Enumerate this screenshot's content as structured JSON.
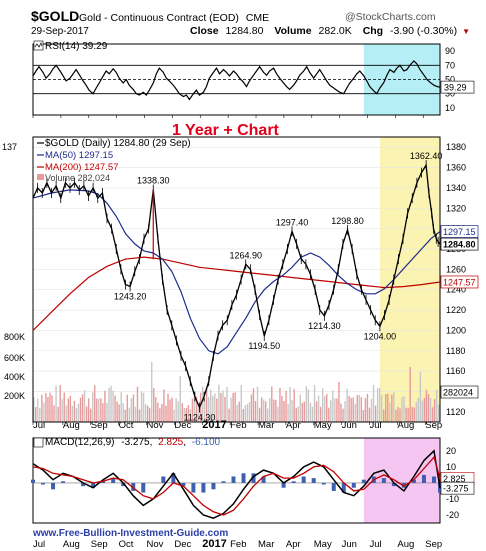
{
  "header": {
    "symbol": "$GOLD",
    "description": "Gold - Continuous Contract (EOD)",
    "exchange": "CME",
    "brand": "@StockCharts.com",
    "date": "29-Sep-2017",
    "close_label": "Close",
    "close_value": "1284.80",
    "volume_label": "Volume",
    "volume_value": "282.0K",
    "chg_label": "Chg",
    "chg_value": "-3.90 (-0.30%)",
    "chg_arrow": "▼"
  },
  "colors": {
    "price": "#000000",
    "ma50": "#1f2c8c",
    "ma200": "#c00000",
    "volume_down": "#e89a9a",
    "volume_up": "#c8c8c8",
    "highlight_yellow": "#fbf3b2",
    "highlight_cyan": "#b5eef5",
    "highlight_magenta": "#f6c6f3",
    "title_red": "#e0001b",
    "macd_hist": "#3f5fb0",
    "macd_signal": "#c00000",
    "link": "#2d3fa6"
  },
  "chart_data": [
    {
      "type": "line",
      "panel": "RSI",
      "label": "RSI(14) 39.29",
      "legend_icon": "rsi-legend-icon",
      "ylim": [
        0,
        100
      ],
      "ticks": [
        "90",
        "70",
        "50",
        "30",
        "10"
      ],
      "current_value": "39.29",
      "reference_lines": [
        70,
        50,
        30
      ],
      "x": [
        0,
        3,
        6,
        10,
        13,
        17,
        20,
        23,
        27,
        30,
        33,
        37,
        40,
        43,
        47,
        50,
        53,
        56,
        60,
        63,
        66,
        70,
        73,
        76,
        80,
        83,
        86,
        90,
        93,
        96,
        100,
        103,
        106,
        110,
        113,
        116,
        120,
        123,
        126,
        130,
        133,
        136,
        140,
        143,
        146,
        150,
        153,
        156,
        160,
        163,
        166,
        170,
        173,
        176,
        180,
        183,
        186,
        190,
        193,
        196,
        200,
        203,
        206,
        210,
        213,
        216,
        220,
        223,
        226,
        230,
        233,
        236,
        240,
        243,
        246,
        250,
        253,
        256,
        260,
        263,
        266,
        270,
        273,
        276,
        280,
        283,
        286,
        290,
        293,
        296,
        300,
        303,
        306,
        310,
        313,
        316,
        320,
        323,
        326,
        330,
        333,
        336,
        340,
        343,
        346,
        350,
        353,
        356,
        360,
        363,
        366,
        370,
        373,
        376,
        380,
        383,
        386,
        390,
        393,
        396,
        400,
        403,
        406
      ],
      "values": [
        55,
        62,
        68,
        60,
        52,
        58,
        65,
        70,
        62,
        55,
        48,
        52,
        58,
        64,
        55,
        48,
        42,
        35,
        30,
        38,
        45,
        55,
        62,
        58,
        65,
        60,
        52,
        45,
        50,
        42,
        36,
        30,
        28,
        32,
        28,
        35,
        45,
        58,
        66,
        60,
        52,
        48,
        42,
        36,
        30,
        26,
        28,
        22,
        30,
        35,
        28,
        32,
        40,
        52,
        60,
        66,
        58,
        64,
        60,
        55,
        62,
        58,
        52,
        46,
        40,
        48,
        56,
        62,
        68,
        60,
        56,
        62,
        66,
        58,
        52,
        45,
        40,
        36,
        42,
        48,
        56,
        62,
        68,
        60,
        52,
        58,
        64,
        55,
        48,
        42,
        38,
        35,
        32,
        30,
        38,
        45,
        52,
        58,
        62,
        55,
        48,
        40,
        34,
        30,
        38,
        46,
        56,
        64,
        60,
        66,
        70,
        62,
        64,
        70,
        76,
        72,
        64,
        56,
        50,
        46,
        42,
        40,
        39.29
      ],
      "highlight": {
        "x_from": 330,
        "x_to": 406
      }
    },
    {
      "type": "line",
      "panel": "Price",
      "title": "1 Year + Chart",
      "label": "$GOLD (Daily) 1284.80 (29 Sep)",
      "ylim": [
        1110,
        1390
      ],
      "ticks": [
        "1380",
        "1360",
        "1340",
        "1320",
        "1300",
        "1280",
        "1260",
        "1240",
        "1220",
        "1200",
        "1180",
        "1160",
        "1140",
        "1120"
      ],
      "series": [
        {
          "name": "$GOLD (Daily) 1284.80 (29 Sep)"
        },
        {
          "name": "MA(50) 1297.15"
        },
        {
          "name": "MA(200) 1247.57"
        },
        {
          "name": "Volume 282,024"
        }
      ],
      "x": [
        0,
        5,
        10,
        15,
        20,
        25,
        30,
        35,
        40,
        45,
        50,
        55,
        60,
        65,
        70,
        75,
        80,
        85,
        90,
        95,
        100,
        105,
        110,
        115,
        120,
        125,
        130,
        135,
        140,
        145,
        150,
        155,
        160,
        165,
        170,
        175,
        180,
        185,
        190,
        195,
        200,
        205,
        210,
        215,
        220,
        225,
        230,
        235,
        240,
        245,
        250,
        255,
        260,
        265,
        270,
        275,
        280,
        285,
        290,
        295,
        300,
        305,
        310,
        315,
        320,
        325,
        330,
        335,
        340,
        345,
        350,
        355,
        360,
        365,
        370,
        375,
        380,
        385,
        390,
        395,
        400,
        405
      ],
      "close": [
        1330,
        1340,
        1335,
        1345,
        1335,
        1342,
        1330,
        1345,
        1340,
        1345,
        1338,
        1342,
        1332,
        1340,
        1330,
        1335,
        1310,
        1300,
        1280,
        1260,
        1245,
        1243.2,
        1258,
        1270,
        1290,
        1300,
        1338.3,
        1290,
        1250,
        1220,
        1205,
        1190,
        1175,
        1165,
        1150,
        1135,
        1124.3,
        1135,
        1150,
        1175,
        1195,
        1205,
        1210,
        1225,
        1235,
        1250,
        1264.9,
        1260,
        1240,
        1215,
        1194.5,
        1210,
        1230,
        1250,
        1265,
        1280,
        1297.4,
        1285,
        1270,
        1265,
        1255,
        1240,
        1220,
        1214.3,
        1225,
        1240,
        1260,
        1285,
        1298.8,
        1280,
        1255,
        1240,
        1230,
        1220,
        1210,
        1204,
        1215,
        1230,
        1250,
        1270,
        1290,
        1315
      ],
      "close_tail_x": [
        405,
        410,
        415,
        420,
        425,
        428,
        431,
        433,
        436,
        438,
        440
      ],
      "close_tail": [
        1315,
        1330,
        1345,
        1355,
        1362.4,
        1335,
        1315,
        1300,
        1290,
        1287,
        1284.8
      ],
      "ma50_x": [
        0,
        20,
        40,
        60,
        70,
        80,
        90,
        100,
        110,
        120,
        130,
        140,
        150,
        160,
        170,
        180,
        190,
        200,
        210,
        220,
        230,
        240,
        250,
        260,
        270,
        280,
        290,
        300,
        310,
        320,
        330,
        340,
        350,
        360,
        370,
        380,
        390,
        400,
        410,
        420,
        430,
        440
      ],
      "ma50": [
        1330,
        1335,
        1338,
        1337,
        1334,
        1325,
        1312,
        1295,
        1285,
        1278,
        1276,
        1270,
        1258,
        1238,
        1212,
        1192,
        1180,
        1177,
        1184,
        1198,
        1212,
        1228,
        1240,
        1248,
        1254,
        1262,
        1272,
        1276,
        1272,
        1264,
        1254,
        1246,
        1240,
        1236,
        1236,
        1241,
        1250,
        1260,
        1270,
        1280,
        1290,
        1297.15
      ],
      "ma200_x": [
        0,
        20,
        40,
        60,
        80,
        100,
        120,
        140,
        160,
        180,
        200,
        220,
        240,
        260,
        280,
        300,
        320,
        340,
        360,
        380,
        400,
        420,
        440
      ],
      "ma200": [
        1200,
        1218,
        1236,
        1252,
        1263,
        1270,
        1272,
        1270,
        1266,
        1262,
        1260,
        1258,
        1256,
        1254,
        1252,
        1250,
        1248,
        1246,
        1244,
        1242,
        1243,
        1245,
        1247.57
      ],
      "volume_max_scale": 900000,
      "volume_ticks": [
        "800K",
        "600K",
        "400K",
        "200K"
      ],
      "volume_value": "282024",
      "annotations": [
        {
          "text": "1338.30",
          "x": 130,
          "y": 1338.3,
          "pos": "above"
        },
        {
          "text": "1243.20",
          "x": 105,
          "y": 1243.2,
          "pos": "below"
        },
        {
          "text": "1124.30",
          "x": 180,
          "y": 1124.3,
          "pos": "below"
        },
        {
          "text": "1264.90",
          "x": 230,
          "y": 1264.9,
          "pos": "above"
        },
        {
          "text": "1194.50",
          "x": 250,
          "y": 1194.5,
          "pos": "below"
        },
        {
          "text": "1297.40",
          "x": 280,
          "y": 1297.4,
          "pos": "above"
        },
        {
          "text": "1298.80",
          "x": 340,
          "y": 1298.8,
          "pos": "above"
        },
        {
          "text": "1214.30",
          "x": 315,
          "y": 1214.3,
          "pos": "below"
        },
        {
          "text": "1204.00",
          "x": 375,
          "y": 1204.0,
          "pos": "below"
        },
        {
          "text": "1362.40",
          "x": 425,
          "y": 1362.4,
          "pos": "above"
        }
      ],
      "price_tags": [
        {
          "text": "1297.15",
          "y": 1297.15,
          "color": "#1f2c8c",
          "bold": false
        },
        {
          "text": "1284.80",
          "y": 1284.8,
          "color": "#000000",
          "bold": true
        },
        {
          "text": "1247.57",
          "y": 1247.57,
          "color": "#c00000",
          "bold": false
        }
      ],
      "highlight": {
        "x_from": 375,
        "x_to": 440
      }
    },
    {
      "type": "line",
      "panel": "MACD",
      "label_prefix": "MACD(12,26,9)",
      "label_macd": "-3.275",
      "label_signal": "2.825",
      "label_hist": "-6.100",
      "ylim": [
        -25,
        28
      ],
      "ticks": [
        "20",
        "10",
        "0",
        "-10",
        "-20"
      ],
      "tags": [
        "2.825",
        "-3.275"
      ],
      "x": [
        0,
        10,
        20,
        30,
        40,
        50,
        60,
        70,
        80,
        90,
        100,
        110,
        120,
        130,
        140,
        150,
        160,
        170,
        180,
        190,
        200,
        210,
        220,
        230,
        240,
        250,
        260,
        270,
        280,
        290,
        300,
        310,
        320,
        330,
        340,
        350,
        360,
        370,
        380,
        390,
        400,
        406
      ],
      "macd": [
        12,
        8,
        2,
        6,
        4,
        0,
        -3,
        2,
        6,
        0,
        -8,
        -14,
        -10,
        -2,
        6,
        -4,
        -14,
        -20,
        -22,
        -19,
        -13,
        -4,
        4,
        8,
        6,
        0,
        4,
        10,
        13,
        10,
        2,
        -6,
        -8,
        -2,
        6,
        8,
        0,
        -5,
        4,
        14,
        20,
        -3.275
      ],
      "signal": [
        10,
        9,
        6,
        5,
        4,
        2,
        0,
        1,
        3,
        2,
        -3,
        -8,
        -10,
        -6,
        0,
        -2,
        -8,
        -14,
        -18,
        -20,
        -17,
        -10,
        -2,
        4,
        6,
        3,
        3,
        6,
        10,
        11,
        7,
        0,
        -5,
        -4,
        2,
        5,
        2,
        -2,
        2,
        9,
        16,
        2.825
      ],
      "highlight": {
        "x_from": 330,
        "x_to": 406
      }
    }
  ],
  "x_axis": {
    "labels": [
      "Jul",
      "Aug",
      "Sep",
      "Oct",
      "Nov",
      "Dec",
      "2017",
      "Feb",
      "Mar",
      "Apr",
      "May",
      "Jun",
      "Jul",
      "Aug",
      "Sep"
    ],
    "bold_label": "2017"
  },
  "footer": {
    "link": "www.Free-Bullion-Investment-Guide.com"
  },
  "misc": {
    "corner_tag": "137"
  }
}
